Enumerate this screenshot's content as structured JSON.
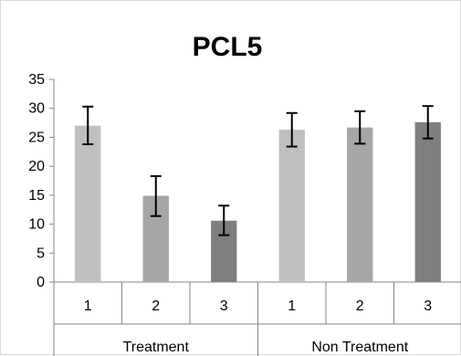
{
  "chart_data": {
    "type": "bar",
    "title": "PCL5",
    "xlabel": "",
    "ylabel": "",
    "ylim": [
      0,
      35
    ],
    "yticks": [
      0,
      5,
      10,
      15,
      20,
      25,
      30,
      35
    ],
    "grid": false,
    "legend": "none",
    "groups": [
      {
        "name": "Treatment",
        "categories": [
          "1",
          "2",
          "3"
        ],
        "values": [
          27.0,
          14.9,
          10.6
        ],
        "error_low": [
          23.8,
          11.4,
          8.1
        ],
        "error_high": [
          30.3,
          18.3,
          13.2
        ],
        "colors": [
          "#bfbfbf",
          "#a6a6a6",
          "#7f7f7f"
        ]
      },
      {
        "name": "Non Treatment",
        "categories": [
          "1",
          "2",
          "3"
        ],
        "values": [
          26.3,
          26.7,
          27.6
        ],
        "error_low": [
          23.4,
          23.9,
          24.8
        ],
        "error_high": [
          29.2,
          29.5,
          30.4
        ],
        "colors": [
          "#bfbfbf",
          "#a6a6a6",
          "#7f7f7f"
        ]
      }
    ]
  }
}
